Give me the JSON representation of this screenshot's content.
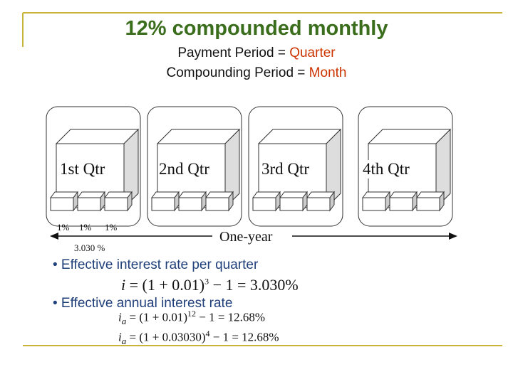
{
  "slide": {
    "title": "12% compounded monthly",
    "payment_line": {
      "label": "Payment Period = ",
      "value": "Quarter"
    },
    "compounding_line": {
      "label": "Compounding Period = ",
      "value": "Month"
    },
    "quarters": [
      "1st Qtr",
      "2nd Qtr",
      "3rd Qtr",
      "4th Qtr"
    ],
    "monthly_rates": [
      "1%",
      "1%",
      "1%"
    ],
    "quarter_rate": "3.030 %",
    "one_year_label": "One-year",
    "bullets": {
      "quarter": "• Effective interest rate per quarter",
      "annual": "• Effective annual interest rate"
    },
    "formulas": {
      "quarter": {
        "var": "i",
        "lhs": " = (1 + 0.01)",
        "exp": "3",
        "rhs": " − 1 = 3.030%"
      },
      "annual_monthly": {
        "var": "i",
        "sub": "a",
        "lhs": " = (1 + 0.01)",
        "exp": "12",
        "rhs": " − 1 = 12.68%"
      },
      "annual_quarterly": {
        "var": "i",
        "sub": "a",
        "lhs": " = (1 + 0.03030)",
        "exp": "4",
        "rhs": " − 1 = 12.68%"
      }
    },
    "colors": {
      "title": "#3a6e1c",
      "highlight": "#cc3300",
      "bullet": "#1f3f7a",
      "rule": "#c9b43a"
    }
  }
}
